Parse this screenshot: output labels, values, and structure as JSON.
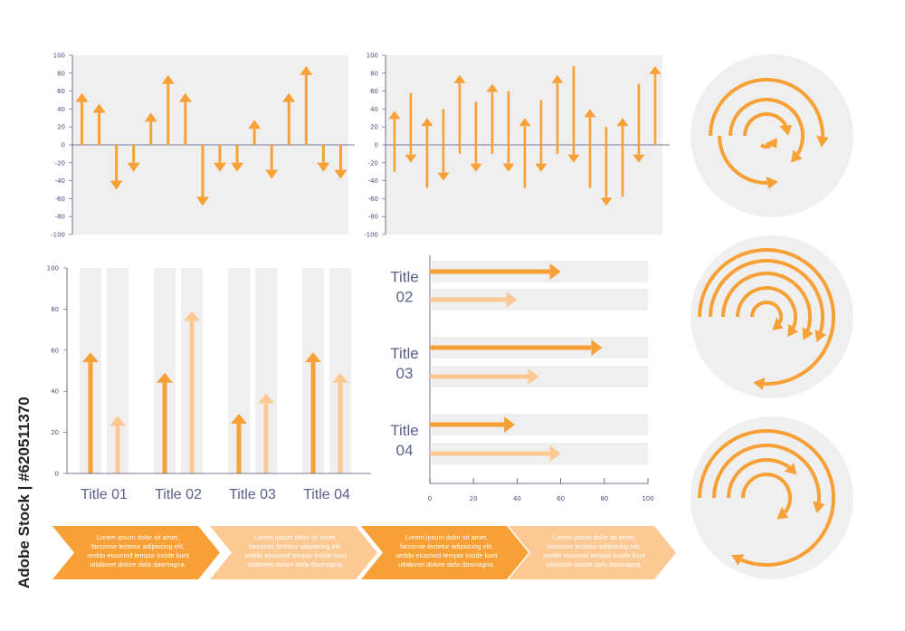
{
  "colors": {
    "dark": "#f7a035",
    "light": "#fcc995",
    "panel": "#efefef",
    "axis": "#4a4f7a"
  },
  "chart_data": [
    {
      "type": "bar",
      "style": "arrows-from-zero",
      "ylim": [
        -100,
        100
      ],
      "yticks": [
        100,
        80,
        60,
        40,
        20,
        0,
        -20,
        -40,
        -60,
        -80,
        -100
      ],
      "values": [
        58,
        46,
        -50,
        -30,
        36,
        78,
        58,
        -68,
        -30,
        -30,
        28,
        -38,
        58,
        88,
        -30,
        -38
      ]
    },
    {
      "type": "bar",
      "style": "floating-arrows",
      "ylim": [
        -100,
        100
      ],
      "yticks": [
        100,
        80,
        60,
        40,
        20,
        0,
        -20,
        -40,
        -60,
        -80,
        -100
      ],
      "ranges": [
        [
          -30,
          38
        ],
        [
          -20,
          58
        ],
        [
          -48,
          30
        ],
        [
          -40,
          40
        ],
        [
          -10,
          78
        ],
        [
          -30,
          48
        ],
        [
          -10,
          68
        ],
        [
          -30,
          60
        ],
        [
          -48,
          30
        ],
        [
          -30,
          50
        ],
        [
          -10,
          78
        ],
        [
          -20,
          88
        ],
        [
          -48,
          40
        ],
        [
          -68,
          20
        ],
        [
          -58,
          30
        ],
        [
          -20,
          68
        ],
        [
          0,
          88
        ]
      ]
    },
    {
      "type": "bar",
      "style": "paired-arrows",
      "ylim": [
        0,
        100
      ],
      "yticks": [
        100,
        80,
        60,
        40,
        20,
        0
      ],
      "categories": [
        "Title 01",
        "Title 02",
        "Title 03",
        "Title 04"
      ],
      "series": [
        {
          "values": [
            59,
            49,
            29,
            59
          ]
        },
        {
          "values": [
            28,
            79,
            39,
            49
          ]
        }
      ]
    },
    {
      "type": "bar",
      "orientation": "horizontal",
      "style": "paired-arrows",
      "xlim": [
        0,
        100
      ],
      "xticks": [
        0,
        20,
        40,
        60,
        80,
        100
      ],
      "categories": [
        "Title\n02",
        "Title\n03",
        "Title\n04"
      ],
      "series": [
        {
          "values": [
            60,
            79,
            39
          ]
        },
        {
          "values": [
            40,
            50,
            60
          ]
        }
      ]
    }
  ],
  "process_steps": [
    {
      "text": "Lorem ipsum dolor sit amet,\nfarconse lectetur adipiscing elit,\nseddo eiusmod tempor incide kunt\nutlaboret dolore dafa dasmagna.",
      "tone": "dark"
    },
    {
      "text": "Lorem ipsum dolor sit amet,\nfarconse lectetur adipiscing elit,\nseddo eiusmod tempor incide kunt\nutlaboret dolore dafa dasmagna.",
      "tone": "light"
    },
    {
      "text": "Lorem ipsum dolor sit amet,\nfarconse lectetur adipiscing elit,\nseddo eiusmod tempor incide kunt\nutlaboret dolore dafa dasmagna.",
      "tone": "dark"
    },
    {
      "text": "Lorem ipsum dolor sit amet,\nfarconse lectetur adipiscing elit,\nseddo eiusmod tempor incide kunt\nutlaboret dolore dafa dasmagna.",
      "tone": "light"
    }
  ],
  "stock_label": "Adobe Stock | #620511370",
  "watermark_text": "Adobe Stock"
}
